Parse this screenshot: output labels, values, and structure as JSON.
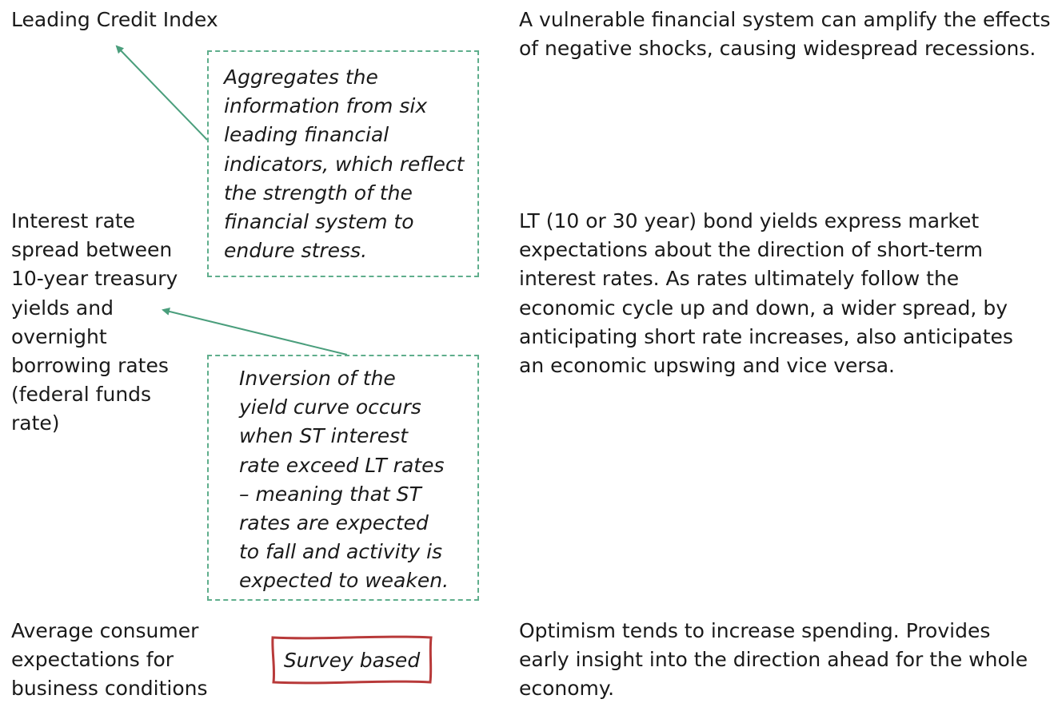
{
  "left_column": {
    "item1": "Leading Credit Index",
    "item2_lines": [
      "Interest rate",
      "spread between",
      "10-year treasury",
      "yields and",
      "overnight",
      "borrowing rates",
      "(federal funds",
      "rate)"
    ],
    "item3_lines": [
      "Average consumer",
      "expectations for",
      "business conditions"
    ]
  },
  "notes": {
    "note1_lines": [
      "Aggregates the",
      "information from six",
      "leading financial",
      "indicators, which reflect",
      "the strength of the",
      "financial system to",
      "endure stress."
    ],
    "note2_lines": [
      "Inversion of the",
      "yield curve occurs",
      "when ST interest",
      "rate exceed LT rates",
      "– meaning that ST",
      "rates are expected",
      "to fall and activity is",
      "expected to weaken."
    ],
    "stamp_label": "Survey based"
  },
  "right_column": {
    "desc1_lines": [
      "A vulnerable financial system can amplify the effects",
      "of negative shocks, causing widespread recessions."
    ],
    "desc2_lines": [
      "LT (10 or 30 year) bond yields express market",
      "expectations about the direction of short-term",
      "interest rates. As rates ultimately follow the",
      "economic cycle up and down, a wider spread, by",
      "anticipating short rate increases, also anticipates",
      "an economic upswing and vice versa."
    ],
    "desc3_lines": [
      "Optimism tends to increase spending. Provides",
      "early insight into the direction ahead for the whole",
      "economy."
    ]
  },
  "colors": {
    "note_border": "#5fae8c",
    "arrow": "#4a9e7c",
    "stamp_border": "#b83a3a",
    "text": "#1a1a1a"
  }
}
